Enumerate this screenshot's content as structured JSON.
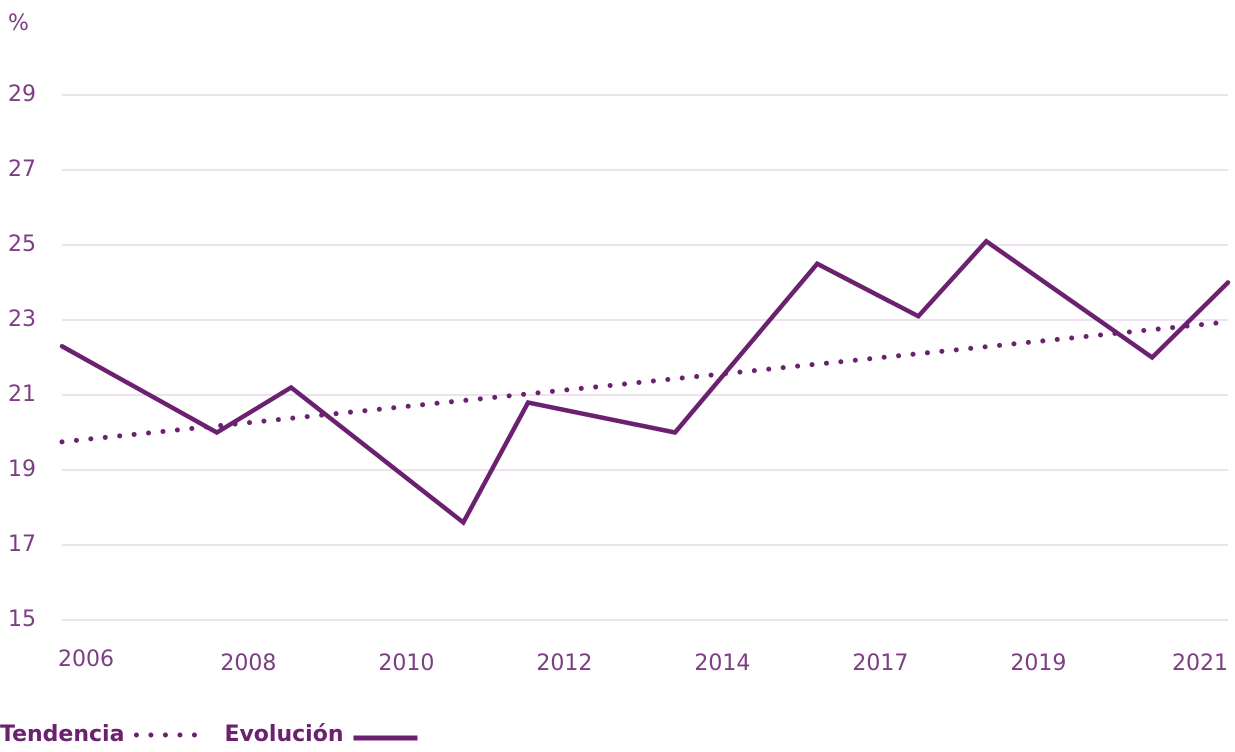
{
  "chart_data": {
    "type": "line",
    "y_unit": "%",
    "xticks": [
      {
        "value": 0,
        "label": "2006"
      },
      {
        "value": 1,
        "label": "2008"
      },
      {
        "value": 2,
        "label": "2010"
      },
      {
        "value": 3,
        "label": "2012"
      },
      {
        "value": 4,
        "label": "2014"
      },
      {
        "value": 5,
        "label": "2017"
      },
      {
        "value": 6,
        "label": "2019"
      },
      {
        "value": 7,
        "label": "2021"
      }
    ],
    "xlim": [
      -0.18,
      7.2
    ],
    "ylim": [
      15,
      29
    ],
    "yticks": [
      15,
      17,
      19,
      21,
      23,
      25,
      27,
      29
    ],
    "grid": true,
    "series": [
      {
        "name": "Tendencia",
        "color": "#6b2170",
        "style": "dotted",
        "x": [
          -0.18,
          7.2
        ],
        "values": [
          19.75,
          22.95
        ]
      },
      {
        "name": "Evolución",
        "color": "#6b2170",
        "style": "solid",
        "x": [
          -0.18,
          0.8,
          1.27,
          2.36,
          2.77,
          3.7,
          4.6,
          5.24,
          5.67,
          6.72,
          7.2
        ],
        "values": [
          22.3,
          20.0,
          21.2,
          17.6,
          20.8,
          20.0,
          24.5,
          23.1,
          25.1,
          22.0,
          24.0
        ]
      }
    ]
  }
}
